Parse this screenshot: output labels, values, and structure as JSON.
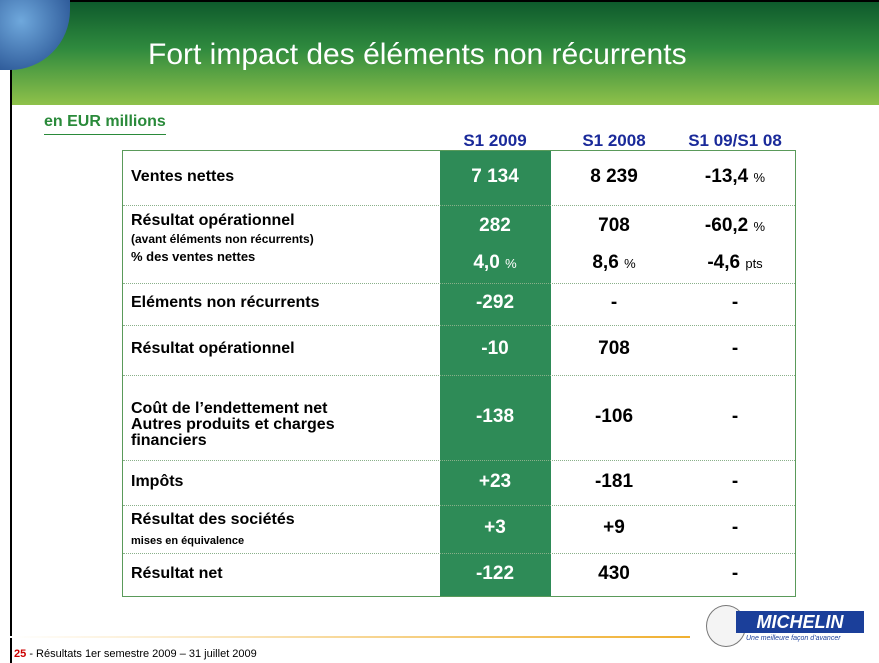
{
  "header": {
    "title": "Fort impact des éléments non récurrents",
    "subtitle": "en EUR millions"
  },
  "table": {
    "columns": [
      "S1 2009",
      "S1 2008",
      "S1 09/S1 08"
    ],
    "rows": [
      {
        "label": "Ventes nettes",
        "cells": [
          {
            "value": "7 134"
          },
          {
            "value": "8 239"
          },
          {
            "value": "-13,4",
            "unit": "%"
          }
        ]
      },
      {
        "label": "Résultat opérationnel",
        "sublabel": "(avant éléments non récurrents)",
        "cells": [
          {
            "value": "282"
          },
          {
            "value": "708"
          },
          {
            "value": "-60,2",
            "unit": "%"
          }
        ],
        "extra": {
          "label": "% des ventes nettes",
          "cells": [
            {
              "value": "4,0",
              "unit": "%"
            },
            {
              "value": "8,6",
              "unit": "%"
            },
            {
              "value": "-4,6",
              "unit": "pts"
            }
          ]
        }
      },
      {
        "label": "Eléments non récurrents",
        "cells": [
          {
            "value": "-292"
          },
          {
            "value": "-"
          },
          {
            "value": "-"
          }
        ]
      },
      {
        "label": "Résultat opérationnel",
        "cells": [
          {
            "value": "-10"
          },
          {
            "value": "708"
          },
          {
            "value": "-"
          }
        ]
      },
      {
        "label": "Coût de l’endettement net Autres produits et charges financiers",
        "cells": [
          {
            "value": "-138"
          },
          {
            "value": "-106"
          },
          {
            "value": "-"
          }
        ]
      },
      {
        "label": "Impôts",
        "cells": [
          {
            "value": "+23"
          },
          {
            "value": "-181"
          },
          {
            "value": "-"
          }
        ]
      },
      {
        "label": "Résultat des sociétés",
        "sublabel": "mises en équivalence",
        "cells": [
          {
            "value": "+3"
          },
          {
            "value": "+9"
          },
          {
            "value": "-"
          }
        ]
      },
      {
        "label": "Résultat net",
        "cells": [
          {
            "value": "-122"
          },
          {
            "value": "430"
          },
          {
            "value": "-"
          }
        ]
      }
    ]
  },
  "footer": {
    "page": "25",
    "text": "- Résultats 1er semestre  2009 – 31 juillet 2009"
  },
  "logo": {
    "name": "MICHELIN",
    "tagline": "Une meilleure façon d’avancer"
  }
}
